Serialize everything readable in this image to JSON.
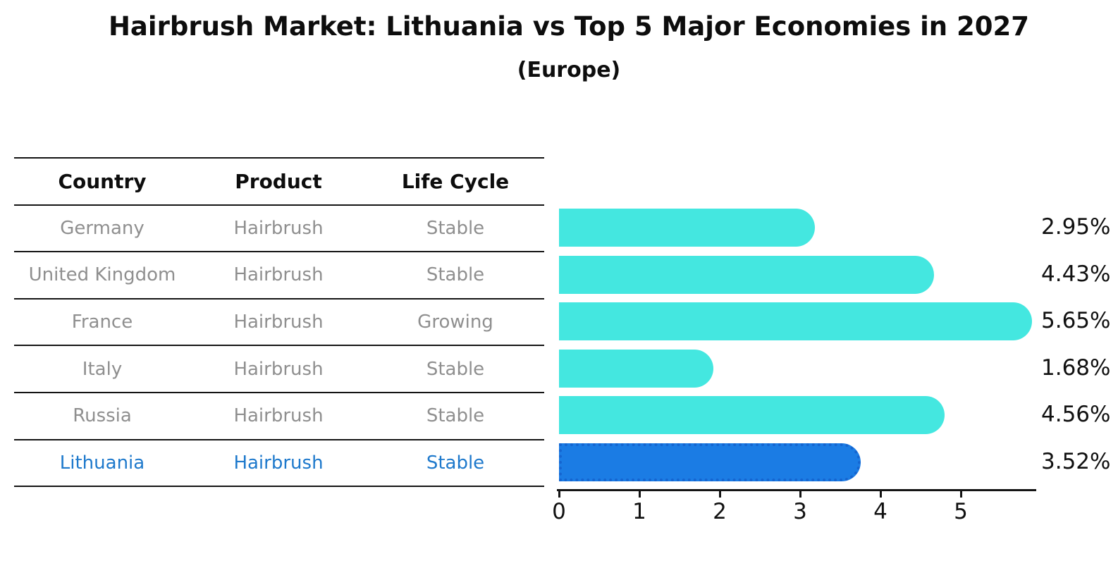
{
  "header": {
    "title": "Hairbrush Market: Lithuania vs Top 5 Major Economies in 2027",
    "subtitle": "(Europe)"
  },
  "table": {
    "columns": [
      "Country",
      "Product",
      "Life Cycle"
    ],
    "rows": [
      {
        "country": "Germany",
        "product": "Hairbrush",
        "life_cycle": "Stable",
        "highlight": false
      },
      {
        "country": "United Kingdom",
        "product": "Hairbrush",
        "life_cycle": "Stable",
        "highlight": false
      },
      {
        "country": "France",
        "product": "Hairbrush",
        "life_cycle": "Growing",
        "highlight": false
      },
      {
        "country": "Italy",
        "product": "Hairbrush",
        "life_cycle": "Stable",
        "highlight": false
      },
      {
        "country": "Russia",
        "product": "Hairbrush",
        "life_cycle": "Stable",
        "highlight": false
      },
      {
        "country": "Lithuania",
        "product": "Hairbrush",
        "life_cycle": "Stable",
        "highlight": true
      }
    ]
  },
  "chart_data": {
    "type": "bar",
    "orientation": "horizontal",
    "title": "Hairbrush Market: Lithuania vs Top 5 Major Economies in 2027",
    "subtitle": "(Europe)",
    "categories": [
      "Germany",
      "United Kingdom",
      "France",
      "Italy",
      "Russia",
      "Lithuania"
    ],
    "values": [
      2.95,
      4.43,
      5.65,
      1.68,
      4.56,
      3.52
    ],
    "value_labels": [
      "2.95%",
      "4.43%",
      "5.65%",
      "1.68%",
      "4.56%",
      "3.52%"
    ],
    "highlight_index": 5,
    "x_ticks": [
      0,
      1,
      2,
      3,
      4,
      5
    ],
    "xlim": [
      0,
      5.95
    ],
    "grid": false,
    "legend": false,
    "colors": {
      "bar": "#44E7E0",
      "highlight_bar": "#1B7CE4",
      "highlight_border": "#1565D0",
      "highlight_text": "#1E79CC",
      "row_text": "#8F8F8F",
      "header_text": "#0D0D0D",
      "axis": "#141414"
    }
  }
}
